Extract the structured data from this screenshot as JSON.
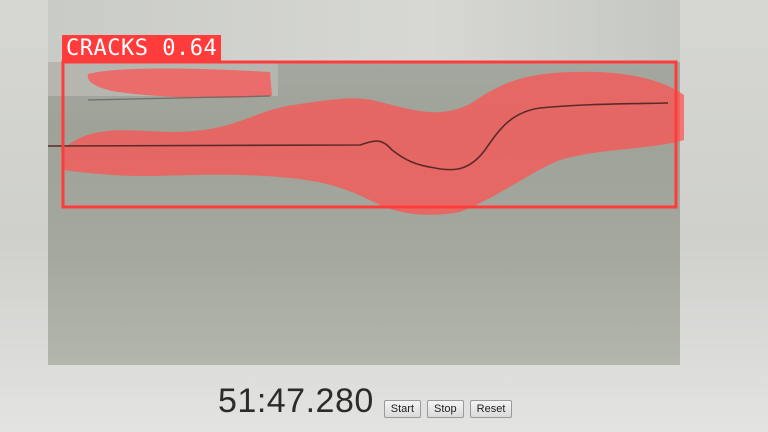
{
  "detection": {
    "label": "CRACKS 0.64",
    "box_color": "#ff3b3b",
    "mask_color": "#ff5a5a"
  },
  "stopwatch": {
    "time": "51:47.280",
    "buttons": {
      "start": "Start",
      "stop": "Stop",
      "reset": "Reset"
    }
  }
}
